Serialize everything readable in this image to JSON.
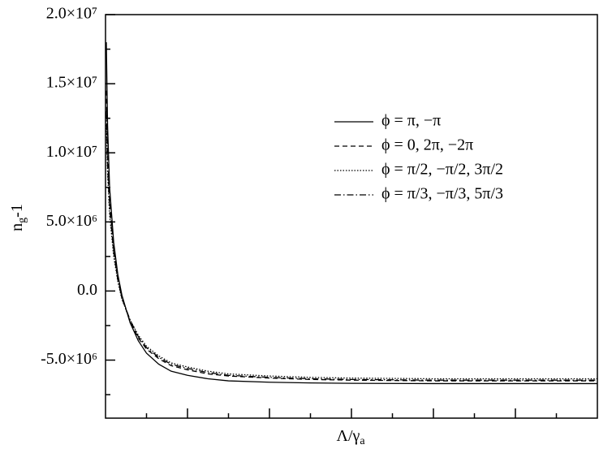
{
  "chart_data": {
    "type": "line",
    "x_label": [
      "Λ/γ",
      "a"
    ],
    "y_label": [
      "n",
      "g",
      "-1"
    ],
    "xlim": [
      0,
      12
    ],
    "xticks": [
      2,
      4,
      6,
      8,
      10
    ],
    "xminor_ticks": [
      1,
      3,
      5,
      7,
      9,
      11
    ],
    "ylim": [
      -9200000,
      20000000
    ],
    "yticks": [
      {
        "value": -5000000,
        "label": "-5.0×10⁶"
      },
      {
        "value": 0,
        "label": "0.0"
      },
      {
        "value": 5000000,
        "label": "5.0×10⁶"
      },
      {
        "value": 10000000,
        "label": "1.0×10⁷"
      },
      {
        "value": 15000000,
        "label": "1.5×10⁷"
      },
      {
        "value": 20000000,
        "label": "2.0×10⁷"
      }
    ],
    "yminor_ticks": [
      -7500000,
      -2500000,
      2500000,
      7500000,
      12500000,
      17500000
    ],
    "grid": false,
    "legend": "upper right",
    "x": [
      0.02,
      0.05,
      0.1,
      0.2,
      0.3,
      0.4,
      0.6,
      0.8,
      1,
      1.3,
      1.6,
      2,
      2.5,
      3,
      4,
      5,
      6,
      8,
      10,
      12
    ],
    "series": [
      {
        "name": "ϕ = π, −π",
        "color": "#000000",
        "dash": "none",
        "values": [
          18000000,
          12000000,
          7500000,
          3500000,
          1200000,
          -300000,
          -2300000,
          -3600000,
          -4500000,
          -5300000,
          -5800000,
          -6100000,
          -6350000,
          -6500000,
          -6600000,
          -6650000,
          -6680000,
          -6700000,
          -6700000,
          -6700000
        ]
      },
      {
        "name": "ϕ = 0, 2π, −2π",
        "color": "#000000",
        "dash": "6,4",
        "values": [
          14500000,
          10000000,
          6500000,
          3000000,
          1000000,
          -500000,
          -2200000,
          -3400000,
          -4200000,
          -4900000,
          -5400000,
          -5700000,
          -6000000,
          -6150000,
          -6300000,
          -6400000,
          -6450000,
          -6500000,
          -6500000,
          -6500000
        ]
      },
      {
        "name": "ϕ = π/2, −π/2, 3π/2",
        "color": "#000000",
        "dash": "1.5,2",
        "values": [
          12000000,
          8500000,
          5500000,
          2500000,
          700000,
          -600000,
          -2100000,
          -3200000,
          -4000000,
          -4700000,
          -5200000,
          -5500000,
          -5800000,
          -6000000,
          -6150000,
          -6250000,
          -6300000,
          -6350000,
          -6350000,
          -6350000
        ]
      },
      {
        "name": "ϕ = π/3, −π/3, 5π/3",
        "color": "#000000",
        "dash": "8,3,1.5,3",
        "values": [
          13000000,
          9000000,
          6000000,
          2800000,
          800000,
          -500000,
          -2100000,
          -3300000,
          -4100000,
          -4800000,
          -5300000,
          -5600000,
          -5900000,
          -6100000,
          -6250000,
          -6350000,
          -6400000,
          -6450000,
          -6450000,
          -6450000
        ]
      }
    ]
  }
}
